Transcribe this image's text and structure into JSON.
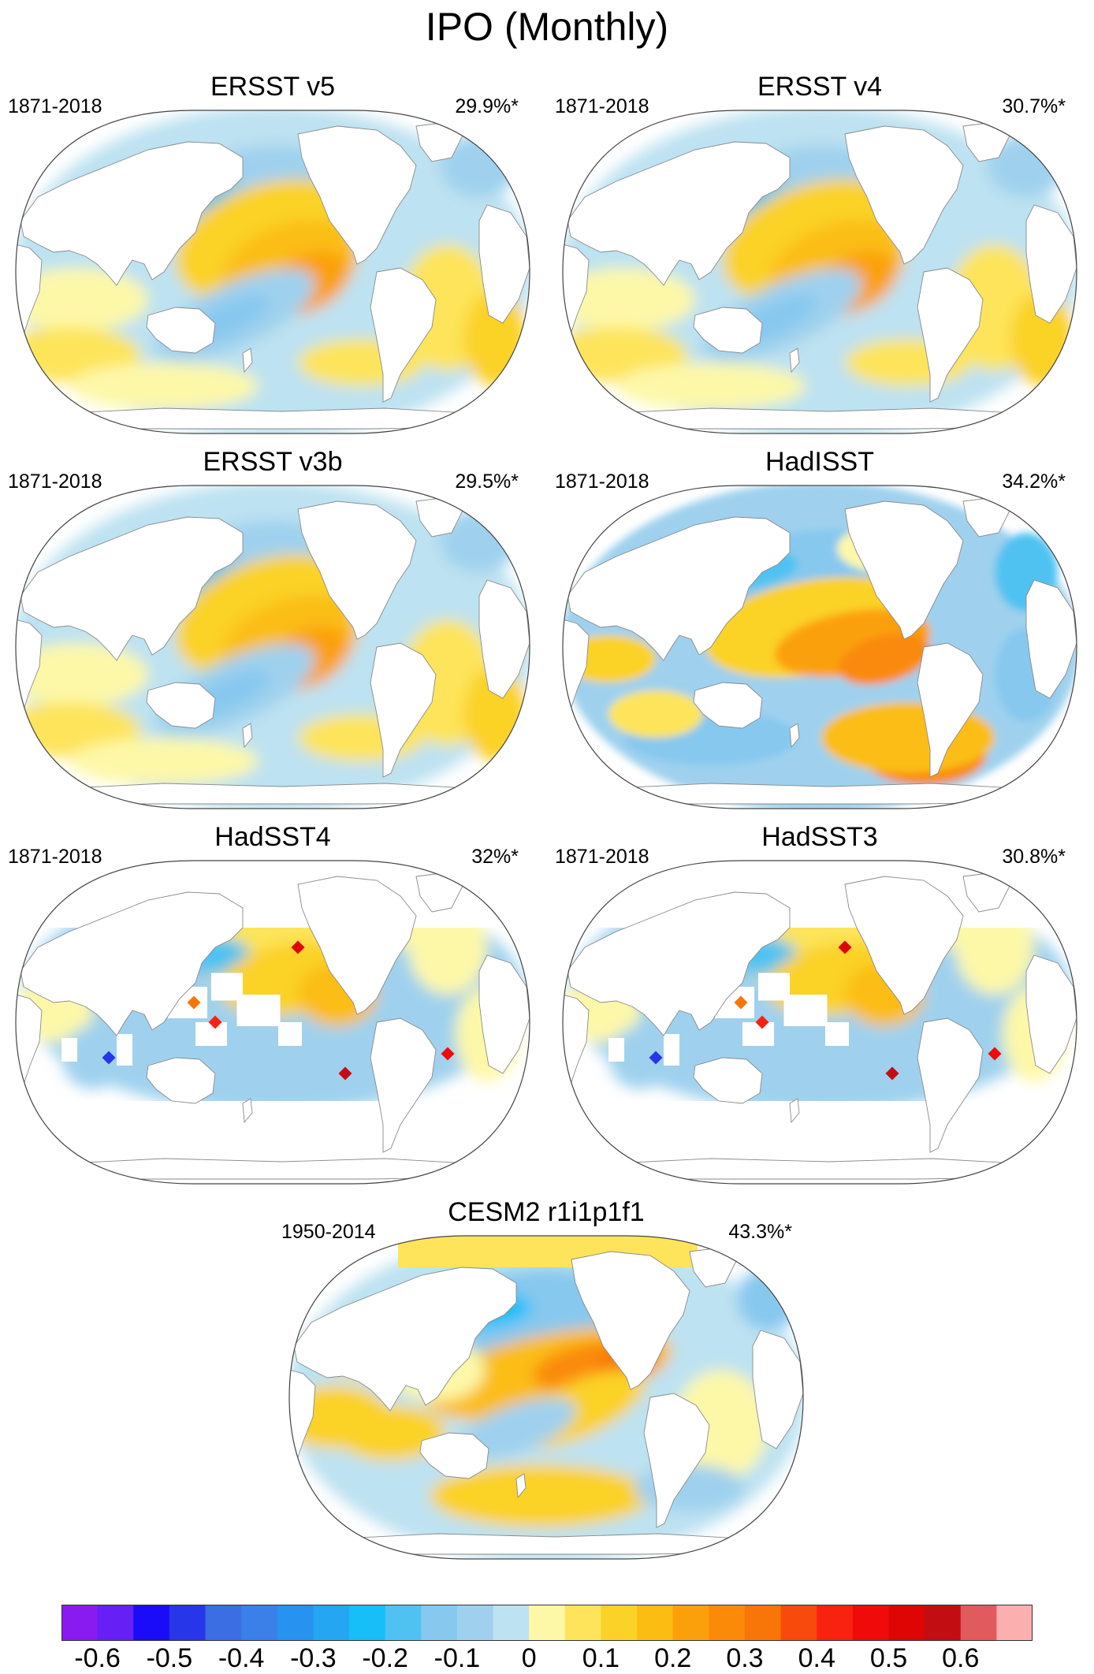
{
  "title": "IPO (Monthly)",
  "panels": [
    {
      "name": "ERSST v5",
      "years": "1871-2018",
      "pct": "29.9%*",
      "style": "smooth"
    },
    {
      "name": "ERSST v4",
      "years": "1871-2018",
      "pct": "30.7%*",
      "style": "smooth"
    },
    {
      "name": "ERSST v3b",
      "years": "1871-2018",
      "pct": "29.5%*",
      "style": "smooth"
    },
    {
      "name": "HadISST",
      "years": "1871-2018",
      "pct": "34.2%*",
      "style": "hadisst"
    },
    {
      "name": "HadSST4",
      "years": "1871-2018",
      "pct": "32%*",
      "style": "sparse"
    },
    {
      "name": "HadSST3",
      "years": "1871-2018",
      "pct": "30.8%*",
      "style": "sparse"
    },
    {
      "name": "CESM2 r1i1p1f1",
      "years": "1950-2014",
      "pct": "43.3%*",
      "style": "cesm"
    }
  ],
  "colorbar": {
    "colors": [
      "#8a1bf0",
      "#6620f5",
      "#1a0cf8",
      "#2636e8",
      "#3b6ee3",
      "#3b80e8",
      "#2792f0",
      "#25a6f2",
      "#16bff8",
      "#4fc2f1",
      "#87c8ef",
      "#9fd1ee",
      "#bde2f1",
      "#fdf8a8",
      "#fde45a",
      "#fbd228",
      "#fbbd12",
      "#fba00a",
      "#fa8a08",
      "#f87608",
      "#f84a0a",
      "#f92210",
      "#f10a0a",
      "#de0505",
      "#c20e12",
      "#e05a5e",
      "#fbb0b0"
    ],
    "labels": [
      "-0.6",
      "-0.5",
      "-0.4",
      "-0.3",
      "-0.2",
      "-0.1",
      "0",
      "0.1",
      "0.2",
      "0.3",
      "0.4",
      "0.5",
      "0.6"
    ],
    "label_values": [
      -0.6,
      -0.5,
      -0.4,
      -0.3,
      -0.2,
      -0.1,
      0,
      0.1,
      0.2,
      0.3,
      0.4,
      0.5,
      0.6
    ]
  }
}
